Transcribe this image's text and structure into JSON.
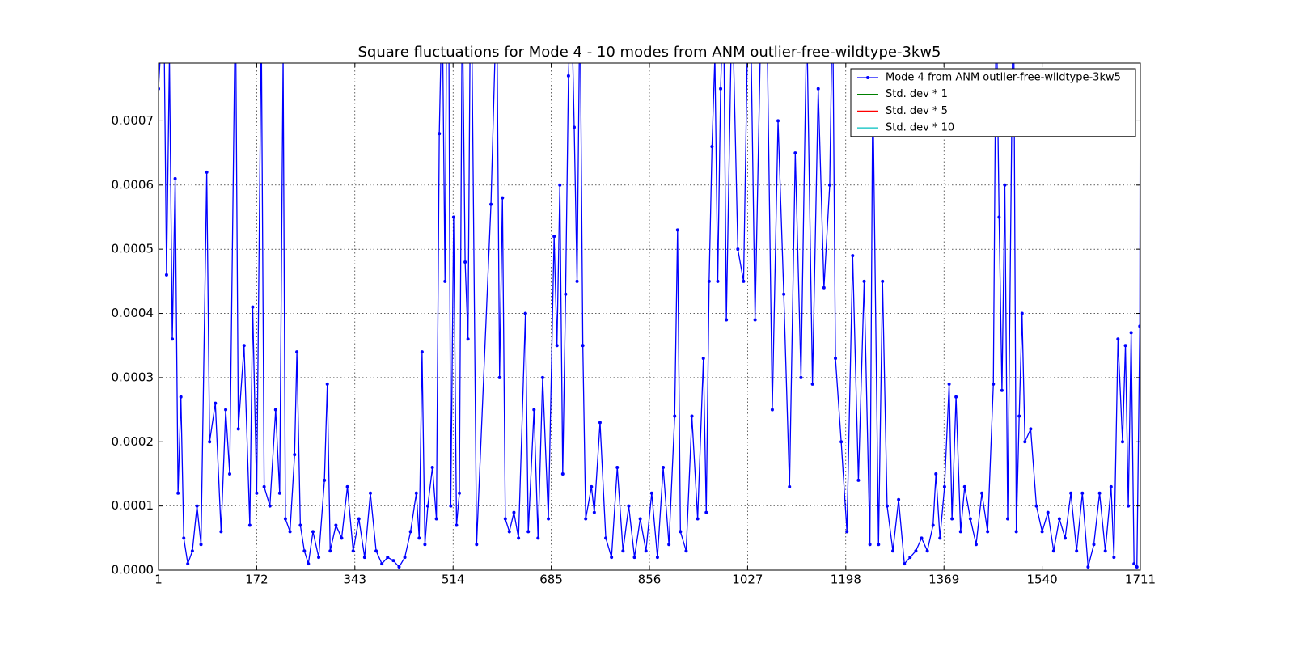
{
  "chart_data": {
    "type": "line",
    "title": "Square fluctuations for Mode 4 - 10 modes from ANM outlier-free-wildtype-3kw5",
    "x": [
      1,
      10,
      15,
      20,
      25,
      30,
      35,
      40,
      45,
      52,
      60,
      68,
      75,
      85,
      90,
      100,
      110,
      118,
      125,
      135,
      140,
      150,
      160,
      165,
      172,
      180,
      185,
      195,
      205,
      212,
      218,
      222,
      230,
      238,
      242,
      248,
      255,
      262,
      270,
      280,
      290,
      295,
      300,
      310,
      320,
      330,
      340,
      350,
      360,
      370,
      380,
      390,
      400,
      410,
      420,
      430,
      440,
      450,
      455,
      460,
      465,
      470,
      478,
      485,
      490,
      495,
      500,
      505,
      510,
      515,
      520,
      525,
      530,
      535,
      540,
      545,
      555,
      580,
      590,
      595,
      600,
      605,
      612,
      620,
      628,
      640,
      645,
      655,
      662,
      670,
      680,
      690,
      695,
      700,
      705,
      710,
      715,
      720,
      725,
      730,
      735,
      740,
      745,
      755,
      760,
      770,
      780,
      790,
      800,
      810,
      820,
      830,
      840,
      850,
      860,
      870,
      880,
      890,
      900,
      905,
      910,
      920,
      930,
      940,
      950,
      955,
      960,
      965,
      970,
      975,
      980,
      985,
      990,
      1000,
      1010,
      1020,
      1030,
      1040,
      1050,
      1060,
      1070,
      1080,
      1090,
      1100,
      1110,
      1120,
      1130,
      1140,
      1150,
      1160,
      1170,
      1175,
      1180,
      1190,
      1200,
      1210,
      1220,
      1230,
      1240,
      1245,
      1255,
      1262,
      1270,
      1280,
      1290,
      1300,
      1310,
      1320,
      1330,
      1340,
      1350,
      1355,
      1362,
      1370,
      1378,
      1383,
      1390,
      1398,
      1405,
      1415,
      1425,
      1435,
      1445,
      1455,
      1460,
      1465,
      1470,
      1475,
      1480,
      1490,
      1495,
      1500,
      1505,
      1510,
      1520,
      1530,
      1540,
      1550,
      1560,
      1570,
      1580,
      1590,
      1600,
      1610,
      1620,
      1630,
      1640,
      1650,
      1660,
      1665,
      1672,
      1680,
      1685,
      1690,
      1695,
      1700,
      1705,
      1710,
      1711
    ],
    "series": [
      {
        "name": "Mode 4 from ANM outlier-free-wildtype-3kw5",
        "color": "#0000ff",
        "values": [
          0.00075,
          0.0009,
          0.00046,
          0.0008,
          0.00036,
          0.00061,
          0.00012,
          0.00027,
          5e-05,
          1e-05,
          3e-05,
          0.0001,
          4e-05,
          0.00062,
          0.0002,
          0.00026,
          6e-05,
          0.00025,
          0.00015,
          0.0009,
          0.00022,
          0.00035,
          7e-05,
          0.00041,
          0.00012,
          0.00085,
          0.00013,
          0.0001,
          0.00025,
          0.00012,
          0.0008,
          8e-05,
          6e-05,
          0.00018,
          0.00034,
          7e-05,
          3e-05,
          1e-05,
          6e-05,
          2e-05,
          0.00014,
          0.00029,
          3e-05,
          7e-05,
          5e-05,
          0.00013,
          3e-05,
          8e-05,
          2e-05,
          0.00012,
          3e-05,
          1e-05,
          2e-05,
          1.5e-05,
          5e-06,
          2e-05,
          6e-05,
          0.00012,
          5e-05,
          0.00034,
          4e-05,
          0.0001,
          0.00016,
          8e-05,
          0.00068,
          0.0009,
          0.00045,
          0.0012,
          0.0001,
          0.00055,
          7e-05,
          0.00012,
          0.0009,
          0.00048,
          0.00036,
          0.001,
          4e-05,
          0.00057,
          0.0009,
          0.0003,
          0.00058,
          8e-05,
          6e-05,
          9e-05,
          5e-05,
          0.0004,
          6e-05,
          0.00025,
          5e-05,
          0.0003,
          8e-05,
          0.00052,
          0.00035,
          0.0006,
          0.00015,
          0.00043,
          0.00077,
          0.0009,
          0.00069,
          0.00045,
          0.0009,
          0.00035,
          8e-05,
          0.00013,
          9e-05,
          0.00023,
          5e-05,
          2e-05,
          0.00016,
          3e-05,
          0.0001,
          2e-05,
          8e-05,
          3e-05,
          0.00012,
          2e-05,
          0.00016,
          4e-05,
          0.00024,
          0.00053,
          6e-05,
          3e-05,
          0.00024,
          8e-05,
          0.00033,
          9e-05,
          0.00045,
          0.00066,
          0.0008,
          0.00045,
          0.00075,
          0.0009,
          0.00039,
          0.0009,
          0.0005,
          0.00045,
          0.001,
          0.00039,
          0.00085,
          0.0009,
          0.00025,
          0.0007,
          0.00043,
          0.00013,
          0.00065,
          0.0003,
          0.00086,
          0.00029,
          0.00075,
          0.00044,
          0.0006,
          0.0009,
          0.00033,
          0.0002,
          6e-05,
          0.00049,
          0.00014,
          0.00045,
          4e-05,
          0.00076,
          4e-05,
          0.00045,
          0.0001,
          3e-05,
          0.00011,
          1e-05,
          2e-05,
          3e-05,
          5e-05,
          3e-05,
          7e-05,
          0.00015,
          5e-05,
          0.00013,
          0.00029,
          8e-05,
          0.00027,
          6e-05,
          0.00013,
          8e-05,
          4e-05,
          0.00012,
          6e-05,
          0.00029,
          0.0009,
          0.00055,
          0.00028,
          0.0006,
          8e-05,
          0.00095,
          6e-05,
          0.00024,
          0.0004,
          0.0002,
          0.00022,
          0.0001,
          6e-05,
          9e-05,
          3e-05,
          8e-05,
          5e-05,
          0.00012,
          3e-05,
          0.00012,
          5e-06,
          4e-05,
          0.00012,
          3e-05,
          0.00013,
          2e-05,
          0.00036,
          0.0002,
          0.00035,
          0.0001,
          0.00037,
          1e-05,
          5e-06,
          0.00038,
          0.0009
        ]
      },
      {
        "name": "Std. dev * 1",
        "color": "#008000"
      },
      {
        "name": "Std. dev * 5",
        "color": "#ff0000"
      },
      {
        "name": "Std. dev * 10",
        "color": "#00bfbf"
      }
    ],
    "xlim": [
      1,
      1711
    ],
    "xticks": [
      1,
      172,
      343,
      514,
      685,
      856,
      1027,
      1198,
      1369,
      1540,
      1711
    ],
    "ylim": [
      0,
      0.00079
    ],
    "yticks": [
      {
        "value": 0,
        "label": "0.0000"
      },
      {
        "value": 0.0001,
        "label": "0.0001"
      },
      {
        "value": 0.0002,
        "label": "0.0002"
      },
      {
        "value": 0.0003,
        "label": "0.0003"
      },
      {
        "value": 0.0004,
        "label": "0.0004"
      },
      {
        "value": 0.0005,
        "label": "0.0005"
      },
      {
        "value": 0.0006,
        "label": "0.0006"
      },
      {
        "value": 0.0007,
        "label": "0.0007"
      }
    ],
    "grid": true,
    "legend": "upper right"
  }
}
